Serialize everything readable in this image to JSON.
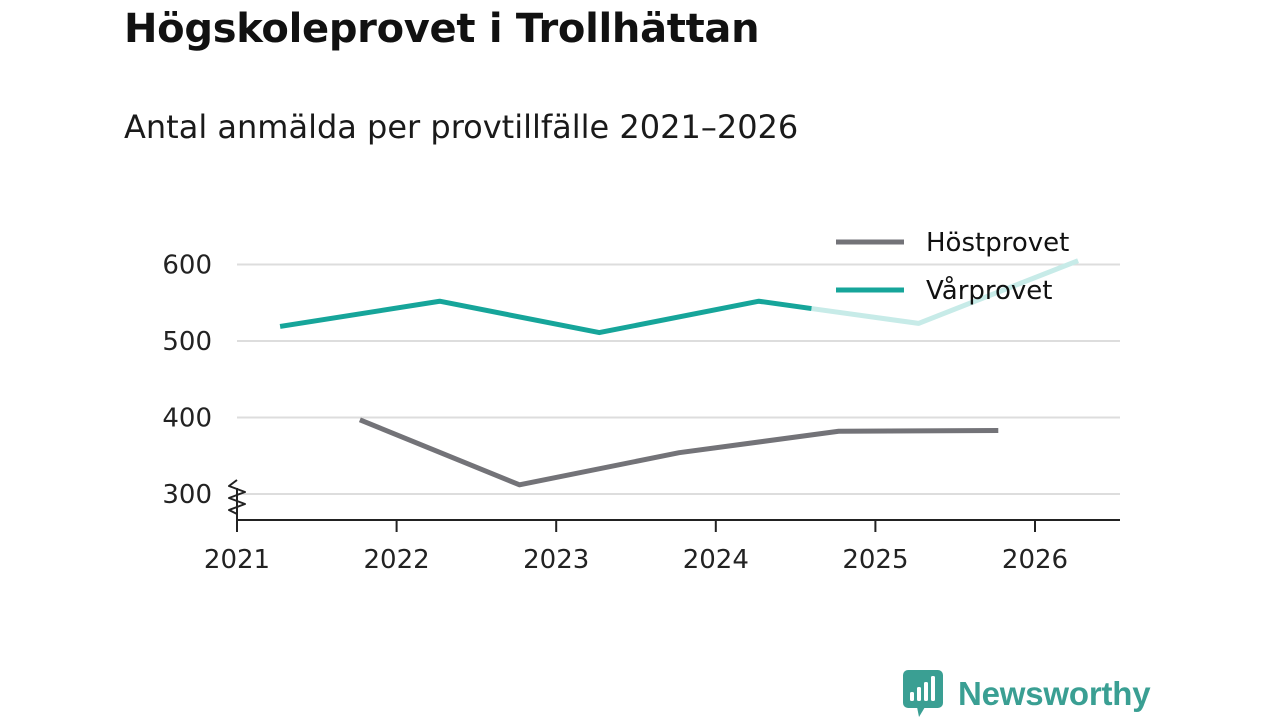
{
  "chart_data": {
    "type": "line",
    "title": "Högskoleprovet i Trollhättan",
    "subtitle": "Antal anmälda per provtillfälle 2021–2026",
    "xlabel": "",
    "ylabel": "",
    "x_ticks": [
      "2021",
      "2022",
      "2023",
      "2024",
      "2025",
      "2026"
    ],
    "y_ticks": [
      300,
      400,
      500,
      600
    ],
    "xlim": [
      2021,
      2026.55
    ],
    "ylim": [
      267,
      650
    ],
    "axis_break": true,
    "grid": true,
    "legend_position": "top-right",
    "series": [
      {
        "name": "Höstprovet",
        "color": "#737378",
        "points": [
          {
            "x": 2021.77,
            "y": 397
          },
          {
            "x": 2022.77,
            "y": 312
          },
          {
            "x": 2023.77,
            "y": 354
          },
          {
            "x": 2024.77,
            "y": 382
          },
          {
            "x": 2025.77,
            "y": 383
          }
        ]
      },
      {
        "name": "Vårprovet",
        "color": "#16a59a",
        "faded_color": "#c7ebe8",
        "points": [
          {
            "x": 2021.27,
            "y": 519
          },
          {
            "x": 2022.27,
            "y": 552
          },
          {
            "x": 2023.27,
            "y": 511
          },
          {
            "x": 2024.27,
            "y": 552
          },
          {
            "x": 2025.27,
            "y": 523
          },
          {
            "x": 2026.27,
            "y": 605
          }
        ],
        "faded_from_x": 2024.6
      }
    ]
  },
  "brand": {
    "name": "Newsworthy",
    "icon": "newsworthy-logo-icon",
    "color": "#3a9f93"
  }
}
